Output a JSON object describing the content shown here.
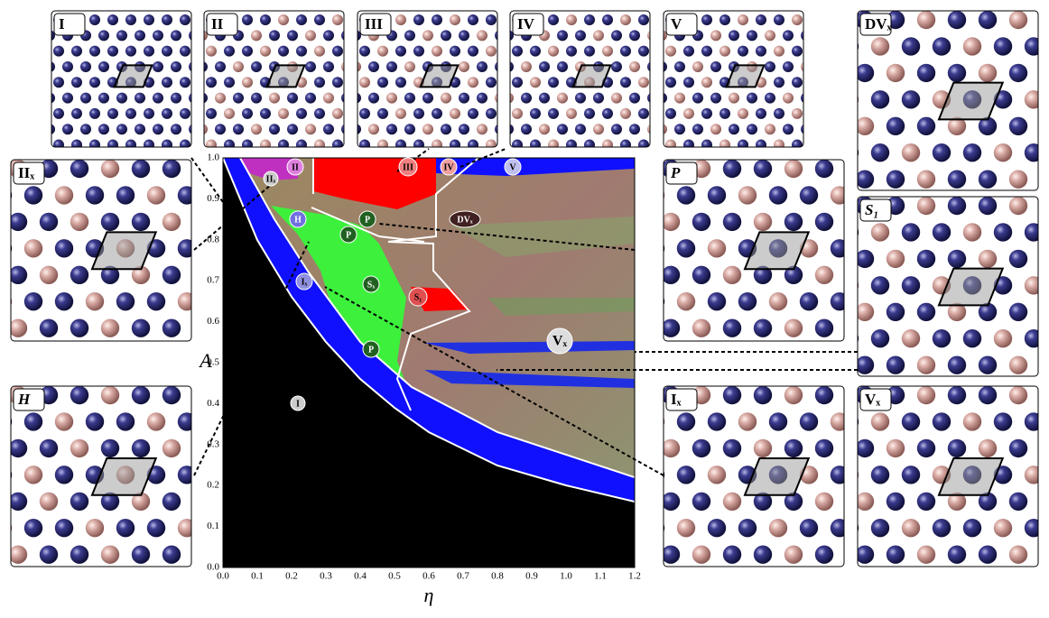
{
  "chart_data": {
    "type": "phase-diagram",
    "x_label": "η",
    "y_label": "A",
    "xlim": [
      0,
      1.2
    ],
    "ylim": [
      0,
      1.0
    ],
    "xticks": [
      {
        "value": 0,
        "label": "0.0"
      },
      0.1,
      0.2,
      0.3,
      0.4,
      0.5,
      0.6,
      0.7,
      0.8,
      0.9,
      {
        "value": 1,
        "label": "1.0"
      },
      1.1,
      1.2
    ],
    "yticks": [
      {
        "value": 0,
        "label": "0.0"
      },
      0.1,
      0.2,
      0.3,
      0.4,
      0.5,
      0.6,
      0.7,
      0.8,
      0.9,
      {
        "value": 1,
        "label": "1.0"
      }
    ],
    "region_labels": [
      "I",
      "IIₓ",
      "II",
      "III",
      "IV",
      "V",
      "H",
      "P",
      "P",
      "DVₓ",
      "Iₓ",
      "Sₓ",
      "S₁",
      "Vₓ",
      "P"
    ],
    "inset_labels": [
      "I",
      "II",
      "III",
      "IV",
      "V",
      "DVₓ",
      "IIₓ",
      "P",
      "S₁",
      "H",
      "Iₓ",
      "Vₓ"
    ]
  }
}
